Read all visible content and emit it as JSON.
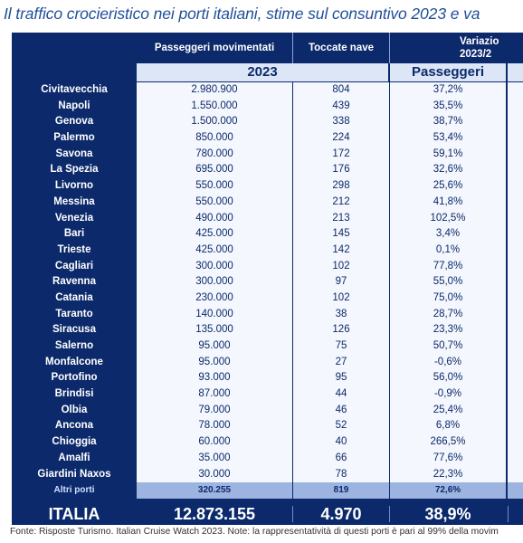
{
  "title": "Il traffico crocieristico nei porti italiani, stime sul consuntivo 2023 e va",
  "headers": {
    "passengers": "Passeggeri movimentati",
    "calls": "Toccate nave",
    "variation": "Variazio 2023/2",
    "year": "2023",
    "passengers_sub": "Passeggeri"
  },
  "rows": [
    {
      "port": "Civitavecchia",
      "passengers": "2.980.900",
      "calls": "804",
      "pct": "37,2%"
    },
    {
      "port": "Napoli",
      "passengers": "1.550.000",
      "calls": "439",
      "pct": "35,5%"
    },
    {
      "port": "Genova",
      "passengers": "1.500.000",
      "calls": "338",
      "pct": "38,7%"
    },
    {
      "port": "Palermo",
      "passengers": "850.000",
      "calls": "224",
      "pct": "53,4%"
    },
    {
      "port": "Savona",
      "passengers": "780.000",
      "calls": "172",
      "pct": "59,1%"
    },
    {
      "port": "La Spezia",
      "passengers": "695.000",
      "calls": "176",
      "pct": "32,6%"
    },
    {
      "port": "Livorno",
      "passengers": "550.000",
      "calls": "298",
      "pct": "25,6%"
    },
    {
      "port": "Messina",
      "passengers": "550.000",
      "calls": "212",
      "pct": "41,8%"
    },
    {
      "port": "Venezia",
      "passengers": "490.000",
      "calls": "213",
      "pct": "102,5%"
    },
    {
      "port": "Bari",
      "passengers": "425.000",
      "calls": "145",
      "pct": "3,4%"
    },
    {
      "port": "Trieste",
      "passengers": "425.000",
      "calls": "142",
      "pct": "0,1%"
    },
    {
      "port": "Cagliari",
      "passengers": "300.000",
      "calls": "102",
      "pct": "77,8%"
    },
    {
      "port": "Ravenna",
      "passengers": "300.000",
      "calls": "97",
      "pct": "55,0%"
    },
    {
      "port": "Catania",
      "passengers": "230.000",
      "calls": "102",
      "pct": "75,0%"
    },
    {
      "port": "Taranto",
      "passengers": "140.000",
      "calls": "38",
      "pct": "28,7%"
    },
    {
      "port": "Siracusa",
      "passengers": "135.000",
      "calls": "126",
      "pct": "23,3%"
    },
    {
      "port": "Salerno",
      "passengers": "95.000",
      "calls": "75",
      "pct": "50,7%"
    },
    {
      "port": "Monfalcone",
      "passengers": "95.000",
      "calls": "27",
      "pct": "-0,6%"
    },
    {
      "port": "Portofino",
      "passengers": "93.000",
      "calls": "95",
      "pct": "56,0%"
    },
    {
      "port": "Brindisi",
      "passengers": "87.000",
      "calls": "44",
      "pct": "-0,9%"
    },
    {
      "port": "Olbia",
      "passengers": "79.000",
      "calls": "46",
      "pct": "25,4%"
    },
    {
      "port": "Ancona",
      "passengers": "78.000",
      "calls": "52",
      "pct": "6,8%"
    },
    {
      "port": "Chioggia",
      "passengers": "60.000",
      "calls": "40",
      "pct": "266,5%"
    },
    {
      "port": "Amalfi",
      "passengers": "35.000",
      "calls": "66",
      "pct": "77,6%"
    },
    {
      "port": "Giardini Naxos",
      "passengers": "30.000",
      "calls": "78",
      "pct": "22,3%"
    },
    {
      "port": "Altri porti",
      "passengers": "320.255",
      "calls": "819",
      "pct": "72,6%"
    }
  ],
  "total": {
    "port": "ITALIA",
    "passengers": "12.873.155",
    "calls": "4.970",
    "pct": "38,9%"
  },
  "footer": "Fonte: Risposte Turismo. Italian Cruise Watch 2023. Note: la rappresentatività di questi porti è pari al 99% della movim"
}
